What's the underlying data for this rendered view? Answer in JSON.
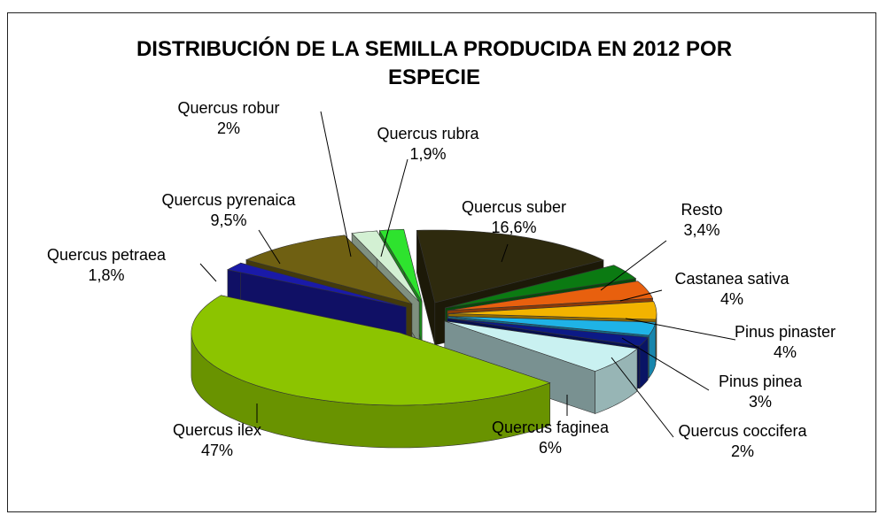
{
  "chart_data": {
    "type": "pie3d",
    "title": "DISTRIBUCIÓN  DE LA SEMILLA PRODUCIDA  EN 2012 POR ESPECIE",
    "categories": [
      "Quercus suber",
      "Resto",
      "Castanea sativa",
      "Pinus pinaster",
      "Pinus pinea",
      "Quercus coccifera",
      "Quercus faginea",
      "Quercus ilex",
      "Quercus petraea",
      "Quercus pyrenaica",
      "Quercus robur",
      "Quercus rubra"
    ],
    "values": [
      16.6,
      3.4,
      4,
      4,
      3,
      2,
      6,
      47,
      1.8,
      9.5,
      2,
      1.9
    ],
    "value_labels": [
      "16,6%",
      "3,4%",
      "4%",
      "4%",
      "3%",
      "2%",
      "6%",
      "47%",
      "1,8%",
      "9,5%",
      "2%",
      "1,9%"
    ],
    "colors": [
      "#2e2a0e",
      "#0b7a12",
      "#e8600e",
      "#f2b300",
      "#1fb3e6",
      "#0c1a86",
      "#c9f1f1",
      "#8cc400",
      "#1a1aa8",
      "#6f6012",
      "#d3f0d3",
      "#2ee32e"
    ]
  }
}
